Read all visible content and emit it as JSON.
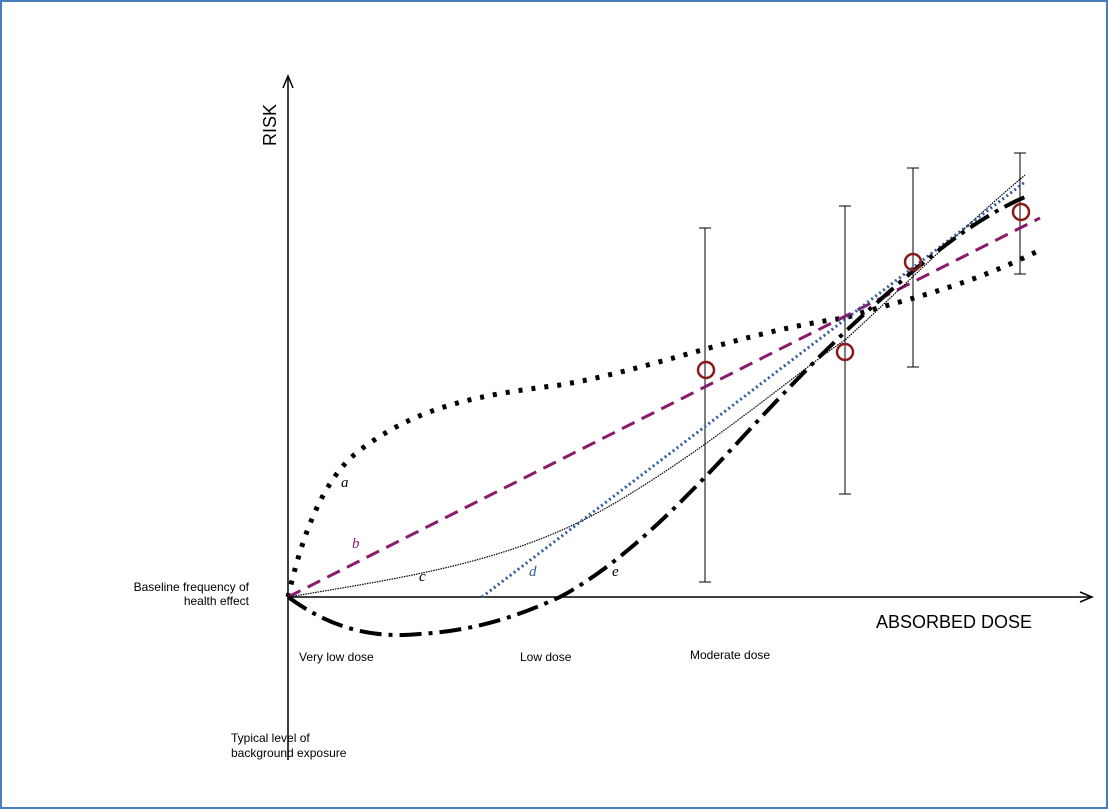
{
  "axes": {
    "y_title": "RISK",
    "x_title": "ABSORBED DOSE",
    "baseline_label_line1": "Baseline frequency of",
    "baseline_label_line2": "health effect",
    "background_label_line1": "Typical level of",
    "background_label_line2": "background exposure"
  },
  "regions": {
    "very_low": "Very low dose",
    "low": "Low dose",
    "moderate": "Moderate dose"
  },
  "curves": [
    {
      "id": "a",
      "label": "a",
      "style": "dotted-thick",
      "color": "#000000"
    },
    {
      "id": "b",
      "label": "b",
      "style": "dashed",
      "color": "#8b1a6b"
    },
    {
      "id": "c",
      "label": "c",
      "style": "thin-solid",
      "color": "#000000"
    },
    {
      "id": "d",
      "label": "d",
      "style": "dotted-fine",
      "color": "#2e5c9a"
    },
    {
      "id": "e",
      "label": "e",
      "style": "dash-dot",
      "color": "#000000"
    }
  ],
  "colors": {
    "frame": "#4a7ebb",
    "markers": "#8b1a1a",
    "curve_b": "#8b1a6b",
    "curve_d": "#2e5c9a"
  }
}
